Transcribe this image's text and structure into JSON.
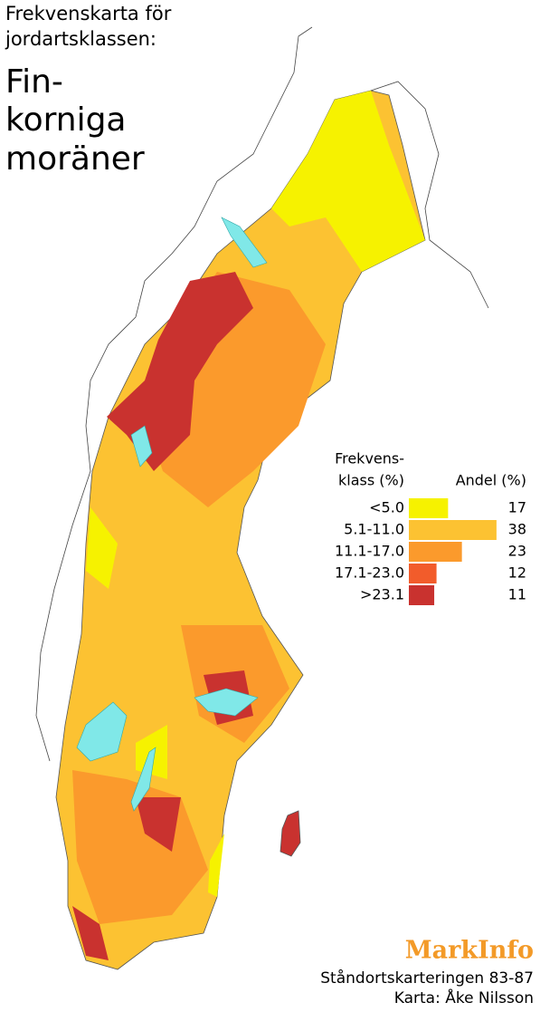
{
  "header": {
    "title_lines": [
      "Frekvenskarta för",
      "jordartsklassen:"
    ],
    "subject_lines": [
      "Fin-",
      "korniga",
      "moräner"
    ]
  },
  "legend": {
    "class_header_lines": [
      "Frekvens-",
      "klass (%)"
    ],
    "share_header": "Andel (%)",
    "entries": [
      {
        "label": "<5.0",
        "color": "#f6f200",
        "value": 17
      },
      {
        "label": "5.1-11.0",
        "color": "#fcc232",
        "value": 38
      },
      {
        "label": "11.1-17.0",
        "color": "#fb9a2c",
        "value": 23
      },
      {
        "label": "17.1-23.0",
        "color": "#f25c2b",
        "value": 12
      },
      {
        "label": ">23.1",
        "color": "#c9322f",
        "value": 11
      }
    ]
  },
  "footer": {
    "brand": "MarkInfo",
    "source": "Ståndortskarteringen 83-87",
    "credit": "Karta: Åke Nilsson"
  }
}
